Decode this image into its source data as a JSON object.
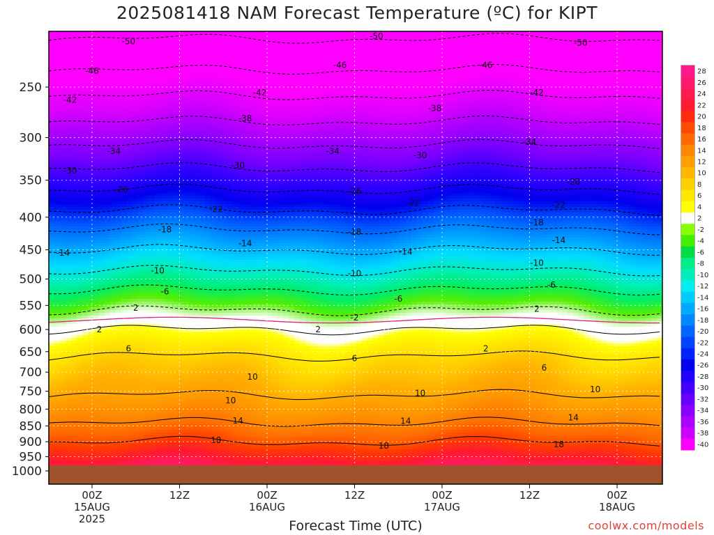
{
  "chart_data": {
    "type": "heatmap",
    "title": "2025081418 NAM Forecast Temperature (ºC) for KIPT",
    "xlabel": "Forecast Time (UTC)",
    "ylabel": "",
    "credit": "coolwx.com/models",
    "y_axis": {
      "scale": "log-pressure",
      "ticks": [
        250,
        300,
        350,
        400,
        450,
        500,
        550,
        600,
        650,
        700,
        750,
        800,
        850,
        900,
        950,
        1000
      ],
      "range": [
        200,
        1020
      ],
      "units": "hPa"
    },
    "x_axis": {
      "range_hours": [
        -6,
        64
      ],
      "ticks": [
        {
          "hour": 0,
          "lines": [
            "00Z",
            "15AUG",
            "2025"
          ]
        },
        {
          "hour": 12,
          "lines": [
            "12Z"
          ]
        },
        {
          "hour": 24,
          "lines": [
            "00Z",
            "16AUG"
          ]
        },
        {
          "hour": 36,
          "lines": [
            "12Z"
          ]
        },
        {
          "hour": 48,
          "lines": [
            "00Z",
            "17AUG"
          ]
        },
        {
          "hour": 60,
          "lines": [
            "12Z"
          ]
        },
        {
          "hour": 72,
          "lines": [
            "00Z",
            "18AUG"
          ]
        }
      ]
    },
    "colorbar": {
      "labels": [
        "28",
        "26",
        "24",
        "22",
        "20",
        "18",
        "16",
        "14",
        "12",
        "10",
        "8",
        "6",
        "4",
        "2",
        "-2",
        "-4",
        "-6",
        "-8",
        "-10",
        "-12",
        "-14",
        "-16",
        "-18",
        "-20",
        "-22",
        "-24",
        "-26",
        "-28",
        "-30",
        "-32",
        "-34",
        "-36",
        "-38",
        "-40"
      ],
      "colors": [
        "#ff1a8c",
        "#ff1a70",
        "#ff1a50",
        "#ff1a30",
        "#ff2a10",
        "#ff4a00",
        "#ff6a00",
        "#ff8800",
        "#ffa000",
        "#ffb800",
        "#ffd000",
        "#ffe800",
        "#ffff00",
        "#ffffff",
        "#88ff00",
        "#44ee00",
        "#00dd44",
        "#00ee88",
        "#00eebb",
        "#00eeee",
        "#00ccff",
        "#00aaff",
        "#0088ff",
        "#0066ff",
        "#0044ff",
        "#0022ff",
        "#0000ee",
        "#2200ff",
        "#4400ff",
        "#6600ff",
        "#8800ff",
        "#aa00ff",
        "#cc00ff",
        "#ff00ff"
      ]
    },
    "isotherms_approx": [
      {
        "temp": -50,
        "pressure": 210
      },
      {
        "temp": -46,
        "pressure": 235
      },
      {
        "temp": -42,
        "pressure": 258
      },
      {
        "temp": -38,
        "pressure": 283
      },
      {
        "temp": -34,
        "pressure": 308
      },
      {
        "temp": -30,
        "pressure": 335
      },
      {
        "temp": -26,
        "pressure": 362
      },
      {
        "temp": -22,
        "pressure": 390
      },
      {
        "temp": -18,
        "pressure": 418
      },
      {
        "temp": -14,
        "pressure": 450
      },
      {
        "temp": -10,
        "pressure": 485
      },
      {
        "temp": -6,
        "pressure": 520
      },
      {
        "temp": -2,
        "pressure": 560
      },
      {
        "temp": 2,
        "pressure": 600
      },
      {
        "temp": 6,
        "pressure": 660
      },
      {
        "temp": 10,
        "pressure": 760
      },
      {
        "temp": 14,
        "pressure": 840
      },
      {
        "temp": 18,
        "pressure": 900
      }
    ],
    "contour_labels": [
      {
        "text": "-50",
        "hour": 5,
        "pressure": 212
      },
      {
        "text": "-50",
        "hour": 39,
        "pressure": 208
      },
      {
        "text": "-50",
        "hour": 67,
        "pressure": 213
      },
      {
        "text": "-46",
        "hour": 0,
        "pressure": 236
      },
      {
        "text": "-46",
        "hour": 34,
        "pressure": 231
      },
      {
        "text": "-46",
        "hour": 54,
        "pressure": 231
      },
      {
        "text": "-42",
        "hour": -3,
        "pressure": 262
      },
      {
        "text": "-42",
        "hour": 23,
        "pressure": 255
      },
      {
        "text": "-42",
        "hour": 61,
        "pressure": 255
      },
      {
        "text": "-38",
        "hour": -7,
        "pressure": 289
      },
      {
        "text": "-38",
        "hour": 21,
        "pressure": 280
      },
      {
        "text": "-38",
        "hour": 47,
        "pressure": 270
      },
      {
        "text": "-34",
        "hour": 3,
        "pressure": 315
      },
      {
        "text": "-34",
        "hour": 33,
        "pressure": 315
      },
      {
        "text": "-34",
        "hour": 60,
        "pressure": 305
      },
      {
        "text": "-30",
        "hour": -3,
        "pressure": 338
      },
      {
        "text": "-30",
        "hour": 20,
        "pressure": 332
      },
      {
        "text": "-30",
        "hour": 45,
        "pressure": 320
      },
      {
        "text": "-26",
        "hour": 4,
        "pressure": 362
      },
      {
        "text": "-26",
        "hour": 36,
        "pressure": 364
      },
      {
        "text": "-26",
        "hour": 66,
        "pressure": 352
      },
      {
        "text": "-22",
        "hour": 17,
        "pressure": 389
      },
      {
        "text": "-22",
        "hour": 44,
        "pressure": 380
      },
      {
        "text": "-22",
        "hour": 64,
        "pressure": 383
      },
      {
        "text": "-18",
        "hour": 10,
        "pressure": 418
      },
      {
        "text": "-18",
        "hour": 36,
        "pressure": 422
      },
      {
        "text": "-18",
        "hour": 61,
        "pressure": 408
      },
      {
        "text": "-14",
        "hour": -4,
        "pressure": 455
      },
      {
        "text": "-14",
        "hour": 21,
        "pressure": 440
      },
      {
        "text": "-14",
        "hour": 43,
        "pressure": 453
      },
      {
        "text": "-14",
        "hour": 64,
        "pressure": 435
      },
      {
        "text": "-10",
        "hour": 9,
        "pressure": 485
      },
      {
        "text": "-10",
        "hour": 36,
        "pressure": 490
      },
      {
        "text": "-10",
        "hour": 61,
        "pressure": 472
      },
      {
        "text": "-6",
        "hour": 10,
        "pressure": 523
      },
      {
        "text": "-6",
        "hour": 42,
        "pressure": 537
      },
      {
        "text": "-6",
        "hour": 63,
        "pressure": 511
      },
      {
        "text": "2",
        "hour": 6,
        "pressure": 555
      },
      {
        "text": "-2",
        "hour": 36,
        "pressure": 575
      },
      {
        "text": "2",
        "hour": 61,
        "pressure": 557
      },
      {
        "text": "2",
        "hour": 1,
        "pressure": 600
      },
      {
        "text": "2",
        "hour": 31,
        "pressure": 600
      },
      {
        "text": "2",
        "hour": 54,
        "pressure": 643
      },
      {
        "text": "6",
        "hour": 5,
        "pressure": 643
      },
      {
        "text": "6",
        "hour": 36,
        "pressure": 666
      },
      {
        "text": "6",
        "hour": 62,
        "pressure": 689
      },
      {
        "text": "10",
        "hour": 22,
        "pressure": 712
      },
      {
        "text": "10",
        "hour": -6,
        "pressure": 765
      },
      {
        "text": "10",
        "hour": 19,
        "pressure": 776
      },
      {
        "text": "10",
        "hour": 45,
        "pressure": 755
      },
      {
        "text": "10",
        "hour": 69,
        "pressure": 745
      },
      {
        "text": "14",
        "hour": 20,
        "pressure": 834
      },
      {
        "text": "14",
        "hour": 43,
        "pressure": 835
      },
      {
        "text": "14",
        "hour": 66,
        "pressure": 825
      },
      {
        "text": "18",
        "hour": 17,
        "pressure": 895
      },
      {
        "text": "18",
        "hour": 40,
        "pressure": 913
      },
      {
        "text": "18",
        "hour": 64,
        "pressure": 909
      }
    ],
    "grid": true,
    "legend_position": "right colorbar",
    "ground_color": "#a0522d"
  }
}
